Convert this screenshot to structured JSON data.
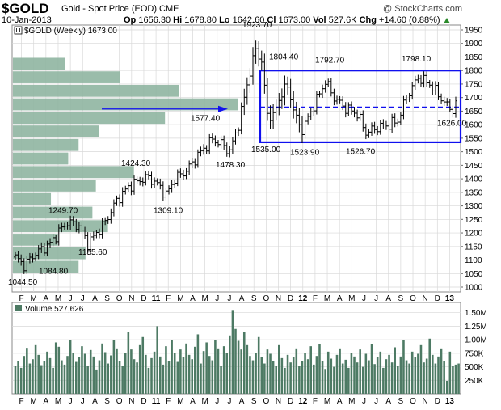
{
  "header": {
    "symbol": "$GOLD",
    "description": "Gold - Spot Price (EOD)",
    "exchange": "CME",
    "date": "10-Jan-2013",
    "open_label": "Op",
    "open": "1656.30",
    "high_label": "Hi",
    "high": "1678.80",
    "low_label": "Lo",
    "low": "1642.60",
    "close_label": "Cl",
    "close": "1673.00",
    "vol_label": "Vol",
    "vol": "527.6K",
    "chg_label": "Chg",
    "chg": "+14.60 (0.88%)",
    "brand": "@ StockCharts.com"
  },
  "colors": {
    "price": "#000000",
    "volume_bar": "#4d7a64",
    "volume_profile": "#8fb5a1",
    "box": "#1010ee",
    "arrow": "#1010ee",
    "grid": "#d8d8d8",
    "up_triangle": "#2a8a2a"
  },
  "chart_data": [
    {
      "type": "ohlc",
      "title": "$GOLD (Weekly) 1673.00",
      "frequency": "weekly",
      "ylim": [
        1000,
        1950
      ],
      "y_ticks": [
        1000,
        1050,
        1100,
        1150,
        1200,
        1250,
        1300,
        1350,
        1400,
        1450,
        1500,
        1550,
        1600,
        1650,
        1700,
        1750,
        1800,
        1850,
        1900,
        1950
      ],
      "x_ticks": [
        "F",
        "M",
        "A",
        "M",
        "J",
        "J",
        "A",
        "S",
        "O",
        "N",
        "D",
        "11",
        "F",
        "M",
        "A",
        "M",
        "J",
        "J",
        "A",
        "S",
        "O",
        "N",
        "D",
        "12",
        "F",
        "M",
        "A",
        "M",
        "J",
        "J",
        "A",
        "S",
        "O",
        "N",
        "D",
        "13"
      ],
      "x_range": [
        "2010-01",
        "2013-01"
      ],
      "grid": true,
      "annotations": [
        {
          "label": "1923.70",
          "value": 1923.7
        },
        {
          "label": "1804.40",
          "value": 1804.4
        },
        {
          "label": "1792.70",
          "value": 1792.7
        },
        {
          "label": "1798.10",
          "value": 1798.1
        },
        {
          "label": "1577.40",
          "value": 1577.4
        },
        {
          "label": "1626.00",
          "value": 1626.0
        },
        {
          "label": "1535.00",
          "value": 1535.0
        },
        {
          "label": "1523.90",
          "value": 1523.9
        },
        {
          "label": "1526.70",
          "value": 1526.7
        },
        {
          "label": "1478.30",
          "value": 1478.3
        },
        {
          "label": "1424.30",
          "value": 1424.3
        },
        {
          "label": "1309.10",
          "value": 1309.1
        },
        {
          "label": "1249.70",
          "value": 1249.7
        },
        {
          "label": "1155.60",
          "value": 1155.6
        },
        {
          "label": "1084.80",
          "value": 1084.8
        },
        {
          "label": "1044.50",
          "value": 1044.5
        }
      ],
      "trading_range": {
        "low": 1535,
        "high": 1800,
        "mid": 1665
      },
      "volume_by_price": [
        {
          "price_from": 1800,
          "price_to": 1850,
          "volume": 30
        },
        {
          "price_from": 1750,
          "price_to": 1800,
          "volume": 62
        },
        {
          "price_from": 1700,
          "price_to": 1750,
          "volume": 96
        },
        {
          "price_from": 1650,
          "price_to": 1700,
          "volume": 130
        },
        {
          "price_from": 1600,
          "price_to": 1650,
          "volume": 88
        },
        {
          "price_from": 1550,
          "price_to": 1600,
          "volume": 50
        },
        {
          "price_from": 1500,
          "price_to": 1550,
          "volume": 38
        },
        {
          "price_from": 1450,
          "price_to": 1500,
          "volume": 32
        },
        {
          "price_from": 1400,
          "price_to": 1450,
          "volume": 70
        },
        {
          "price_from": 1350,
          "price_to": 1400,
          "volume": 48
        },
        {
          "price_from": 1300,
          "price_to": 1350,
          "volume": 22
        },
        {
          "price_from": 1250,
          "price_to": 1300,
          "volume": 46
        },
        {
          "price_from": 1200,
          "price_to": 1250,
          "volume": 55
        },
        {
          "price_from": 1150,
          "price_to": 1200,
          "volume": 26
        },
        {
          "price_from": 1100,
          "price_to": 1150,
          "volume": 42
        },
        {
          "price_from": 1050,
          "price_to": 1100,
          "volume": 38
        }
      ],
      "anchors": [
        {
          "week": 0,
          "close": 1110
        },
        {
          "week": 3,
          "close": 1080
        },
        {
          "week": 7,
          "close": 1125
        },
        {
          "week": 12,
          "close": 1160
        },
        {
          "week": 15,
          "close": 1205
        },
        {
          "week": 18,
          "close": 1240
        },
        {
          "week": 22,
          "close": 1225
        },
        {
          "week": 25,
          "close": 1160
        },
        {
          "week": 28,
          "close": 1200
        },
        {
          "week": 31,
          "close": 1240
        },
        {
          "week": 35,
          "close": 1320
        },
        {
          "week": 39,
          "close": 1370
        },
        {
          "week": 43,
          "close": 1395
        },
        {
          "week": 46,
          "close": 1405
        },
        {
          "week": 50,
          "close": 1370
        },
        {
          "week": 52,
          "close": 1340
        },
        {
          "week": 55,
          "close": 1400
        },
        {
          "week": 59,
          "close": 1430
        },
        {
          "week": 64,
          "close": 1500
        },
        {
          "week": 68,
          "close": 1545
        },
        {
          "week": 71,
          "close": 1530
        },
        {
          "week": 74,
          "close": 1500
        },
        {
          "week": 77,
          "close": 1600
        },
        {
          "week": 80,
          "close": 1750
        },
        {
          "week": 83,
          "close": 1880
        },
        {
          "week": 85,
          "close": 1830
        },
        {
          "week": 87,
          "close": 1640
        },
        {
          "week": 89,
          "close": 1630
        },
        {
          "week": 92,
          "close": 1720
        },
        {
          "week": 94,
          "close": 1740
        },
        {
          "week": 97,
          "close": 1620
        },
        {
          "week": 99,
          "close": 1580
        },
        {
          "week": 103,
          "close": 1670
        },
        {
          "week": 107,
          "close": 1760
        },
        {
          "week": 110,
          "close": 1700
        },
        {
          "week": 114,
          "close": 1660
        },
        {
          "week": 118,
          "close": 1640
        },
        {
          "week": 121,
          "close": 1570
        },
        {
          "week": 125,
          "close": 1590
        },
        {
          "week": 129,
          "close": 1600
        },
        {
          "week": 132,
          "close": 1615
        },
        {
          "week": 135,
          "close": 1700
        },
        {
          "week": 139,
          "close": 1775
        },
        {
          "week": 143,
          "close": 1750
        },
        {
          "week": 146,
          "close": 1710
        },
        {
          "week": 149,
          "close": 1670
        },
        {
          "week": 151,
          "close": 1655
        },
        {
          "week": 152,
          "close": 1673
        }
      ]
    },
    {
      "type": "bar",
      "title": "Volume 527,626",
      "ylim": [
        0,
        1600000
      ],
      "y_ticks": [
        250000,
        500000,
        750000,
        1000000,
        1250000,
        1500000
      ],
      "y_tick_labels": [
        "250K",
        "500K",
        "750K",
        "1.00M",
        "1.25M",
        "1.50M"
      ],
      "values": [
        520000,
        610000,
        480000,
        700000,
        850000,
        560000,
        640000,
        900000,
        720000,
        530000,
        600000,
        780000,
        660000,
        480000,
        950000,
        870000,
        620000,
        540000,
        700000,
        1000000,
        760000,
        590000,
        680000,
        880000,
        740000,
        520000,
        810000,
        690000,
        450000,
        620000,
        930000,
        770000,
        560000,
        710000,
        990000,
        840000,
        600000,
        520000,
        750000,
        1150000,
        820000,
        640000,
        580000,
        900000,
        1050000,
        720000,
        480000,
        660000,
        780000,
        1250000,
        690000,
        540000,
        880000,
        610000,
        1000000,
        760000,
        590000,
        820000,
        680000,
        930000,
        720000,
        640000,
        870000,
        1100000,
        560000,
        790000,
        950000,
        700000,
        620000,
        1000000,
        840000,
        520000,
        880000,
        760000,
        1080000,
        1550000,
        1200000,
        980000,
        820000,
        1150000,
        900000,
        700000,
        620000,
        760000,
        1050000,
        680000,
        560000,
        820000,
        740000,
        600000,
        520000,
        900000,
        660000,
        480000,
        720000,
        580000,
        680000,
        840000,
        520000,
        610000,
        760000,
        640000,
        880000,
        540000,
        700000,
        920000,
        600000,
        460000,
        780000,
        650000,
        500000,
        720000,
        840000,
        560000,
        630000,
        480000,
        760000,
        690000,
        580000,
        820000,
        500000,
        740000,
        620000,
        920000,
        550000,
        680000,
        780000,
        480000,
        640000,
        720000,
        580000,
        860000,
        510000,
        690000,
        1000000,
        620000,
        560000,
        780000,
        680000,
        740000,
        900000,
        580000,
        650000,
        1020000,
        720000,
        560000,
        690000,
        840000,
        600000,
        240000,
        780000,
        520000,
        540000,
        560000
      ]
    }
  ]
}
